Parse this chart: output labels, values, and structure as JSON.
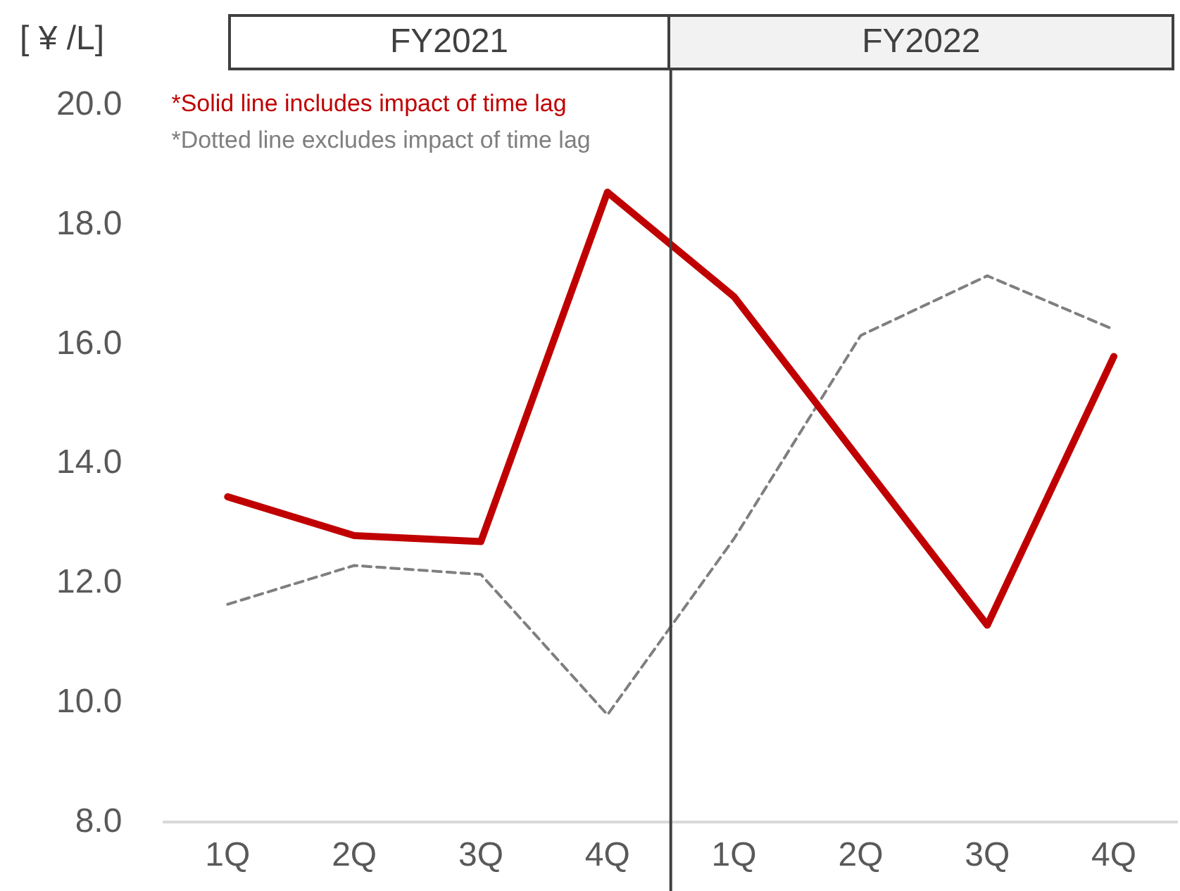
{
  "chart_data": {
    "type": "line",
    "ylabel": "[ ¥ /L]",
    "categories": [
      "1Q",
      "2Q",
      "3Q",
      "4Q",
      "1Q",
      "2Q",
      "3Q",
      "4Q"
    ],
    "series": [
      {
        "color": "#c00000",
        "line_style": "solid",
        "values": [
          13.45,
          12.8,
          12.7,
          18.55,
          16.8,
          14.05,
          11.3,
          15.8
        ]
      },
      {
        "color": "#7f7f7f",
        "line_style": "dashed",
        "values": [
          11.65,
          12.3,
          12.15,
          9.8,
          12.75,
          16.15,
          17.15,
          16.25
        ]
      }
    ],
    "annotations": [
      "FY2021",
      "FY2022",
      "*Solid line includes impact of time lag",
      "*Dotted line excludes impact of time lag"
    ],
    "ylim": [
      8,
      20
    ],
    "yticks": [
      {
        "value": 8,
        "label": "8.0"
      },
      {
        "value": 10,
        "label": "10.0"
      },
      {
        "value": 12,
        "label": "12.0"
      },
      {
        "value": 14,
        "label": "14.0"
      },
      {
        "value": 16,
        "label": "16.0"
      },
      {
        "value": 18,
        "label": "18.0"
      },
      {
        "value": 20,
        "label": "20.0"
      }
    ],
    "grid": false,
    "legend": false,
    "marker": "none"
  }
}
